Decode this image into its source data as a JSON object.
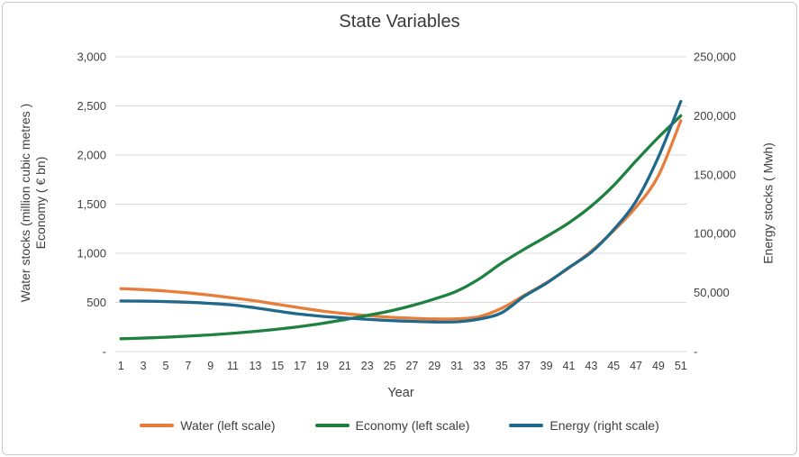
{
  "figure": {
    "title": "State Variables"
  },
  "axes": {
    "left_title_line1": "Water stocks  (million cubic metres )",
    "left_title_line2": "Economy ( € bn)",
    "right_title": "Energy stocks  ( Mwh)",
    "x_title": "Year"
  },
  "chart_data": {
    "type": "line",
    "title": "State Variables",
    "x_label": "Year",
    "grid": true,
    "legend_position": "bottom",
    "colors": {
      "grid": "#d9d9d9",
      "text": "#404040",
      "frame": "#c9c9c9"
    },
    "x": [
      1,
      3,
      5,
      7,
      9,
      11,
      13,
      15,
      17,
      19,
      21,
      23,
      25,
      27,
      29,
      31,
      33,
      35,
      37,
      39,
      41,
      43,
      45,
      47,
      49,
      51
    ],
    "x_axis": {
      "title": "Year",
      "range": [
        1,
        51
      ]
    },
    "left_axis": {
      "title_line1": "Water stocks  (million cubic metres )",
      "title_line2": "Economy ( € bn)",
      "range": [
        0,
        3000
      ],
      "tick_labels": [
        "-",
        "500",
        "1,000",
        "1,500",
        "2,000",
        "2,500",
        "3,000"
      ]
    },
    "right_axis": {
      "title": "Energy stocks  ( Mwh)",
      "range": [
        0,
        250000
      ],
      "tick_labels": [
        "-",
        "50,000",
        "100,000",
        "150,000",
        "200,000",
        "250,000"
      ]
    },
    "series": [
      {
        "name": "Water (left scale)",
        "axis": "left",
        "color": "#e87d3b",
        "values": [
          640,
          630,
          616,
          597,
          573,
          546,
          516,
          480,
          445,
          412,
          386,
          366,
          350,
          339,
          332,
          334,
          355,
          440,
          570,
          700,
          850,
          1020,
          1230,
          1470,
          1790,
          2350
        ]
      },
      {
        "name": "Economy (left scale)",
        "axis": "left",
        "color": "#1f8140",
        "values": [
          130,
          137,
          146,
          157,
          170,
          186,
          205,
          228,
          255,
          287,
          325,
          368,
          412,
          468,
          535,
          615,
          740,
          900,
          1040,
          1170,
          1310,
          1480,
          1690,
          1940,
          2180,
          2400
        ]
      },
      {
        "name": "Energy (right scale)",
        "axis": "right",
        "color": "#20698a",
        "values": [
          42900,
          42750,
          42400,
          41800,
          40800,
          39500,
          37100,
          34300,
          31700,
          29800,
          28500,
          27300,
          26300,
          25600,
          25100,
          25250,
          27500,
          32900,
          46700,
          57900,
          71250,
          84200,
          103300,
          127500,
          165000,
          212100
        ]
      }
    ]
  }
}
